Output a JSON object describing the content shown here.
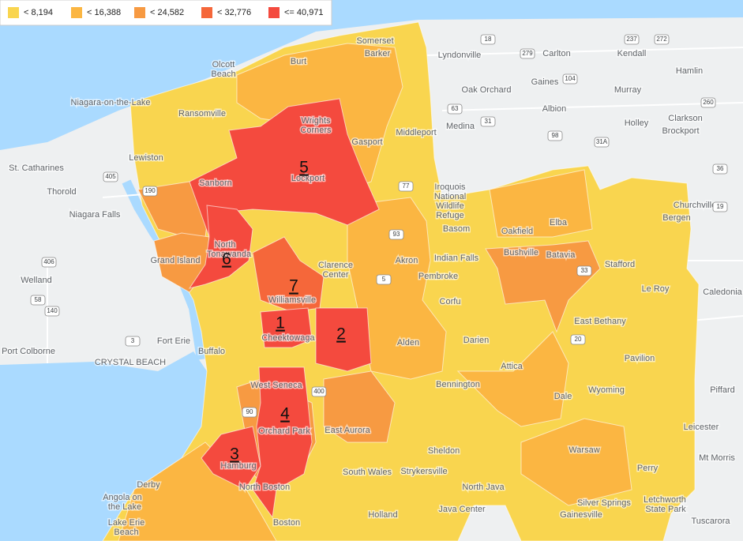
{
  "legend": {
    "items": [
      {
        "label": "< 8,194",
        "color": "#f9d54f"
      },
      {
        "label": "< 16,388",
        "color": "#fbb642"
      },
      {
        "label": "< 24,582",
        "color": "#f79a42"
      },
      {
        "label": "< 32,776",
        "color": "#f5673a"
      },
      {
        "label": "<= 40,971",
        "color": "#f44a3e"
      }
    ]
  },
  "region_labels": [
    "1",
    "2",
    "3",
    "4",
    "5",
    "6",
    "7"
  ],
  "places": [
    "Lyndonville",
    "Carlton",
    "Kendall",
    "Hamlin",
    "Gaines",
    "Oak Orchard",
    "Murray",
    "Albion",
    "Clarkson",
    "Holley",
    "Medina",
    "Brockport",
    "Niagara-on-the-Lake",
    "Ransomville",
    "St. Catharines",
    "Thorold",
    "Niagara Falls",
    "Welland",
    "Port Colborne",
    "Fort Erie",
    "CRYSTAL BEACH",
    "Buffalo",
    "Iroquois",
    "National",
    "Wildlife",
    "Refuge",
    "Basom",
    "Oakfield",
    "Elba",
    "Churchville",
    "Bergen",
    "Batavia",
    "Bushville",
    "Stafford",
    "Le Roy",
    "Caledonia",
    "East Bethany",
    "Pavilion",
    "Piffard",
    "Wyoming",
    "Leicester",
    "Warsaw",
    "Mt Morris",
    "Perry",
    "Silver Springs",
    "Letchworth",
    "State Park",
    "Gainesville",
    "Tuscarora",
    "North Java",
    "Java Center",
    "Holland",
    "Boston",
    "South Wales",
    "Strykersville",
    "Sheldon",
    "East Aurora",
    "Orchard Park",
    "Hamburg",
    "West Seneca",
    "Cheektowaga",
    "Williamsville",
    "Alden",
    "Darien",
    "Attica",
    "Bennington",
    "Akron",
    "Corfu",
    "Pembroke",
    "Indian Falls",
    "Lockport",
    "Gasport",
    "Middleport",
    "Wrights",
    "Corners",
    "Burt",
    "Somerset",
    "Barker",
    "Olcott",
    "Beach",
    "Sanborn",
    "Lewiston",
    "Grand Island",
    "North",
    "Tonawanda",
    "Clarence",
    "Center",
    "Angola on",
    "the Lake",
    "Derby",
    "Lake Erie",
    "Beach",
    "North Boston",
    "Dale"
  ],
  "routes": [
    "18",
    "237",
    "272",
    "279",
    "104",
    "63",
    "31",
    "98",
    "31A",
    "260",
    "36",
    "405",
    "406",
    "58",
    "140",
    "3",
    "190",
    "90",
    "33",
    "20",
    "400",
    "77",
    "93",
    "5",
    "19"
  ]
}
